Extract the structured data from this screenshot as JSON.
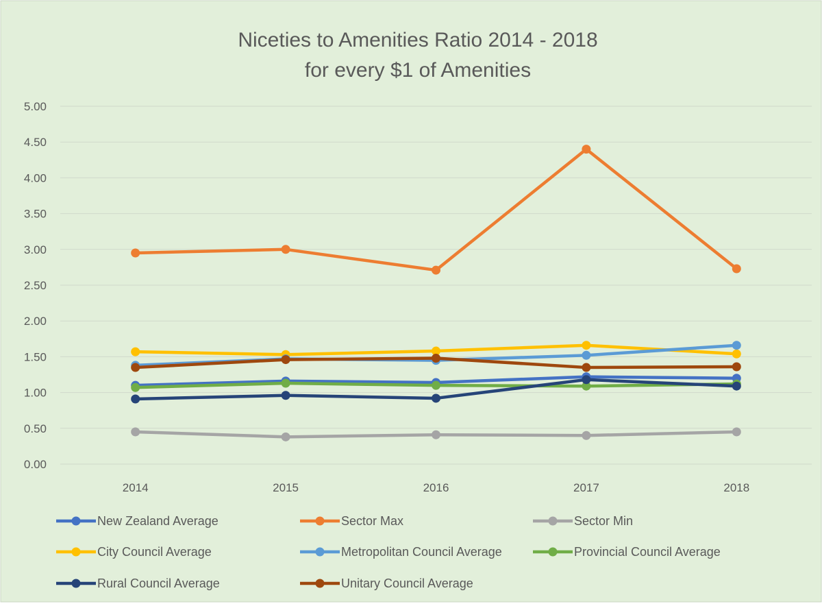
{
  "chart_data": {
    "type": "line",
    "title": [
      "Niceties to Amenities Ratio 2014 - 2018",
      "for every $1 of Amenities"
    ],
    "xlabel": "",
    "ylabel": "",
    "categories": [
      "2014",
      "2015",
      "2016",
      "2017",
      "2018"
    ],
    "ylim": [
      0,
      5
    ],
    "yticks": [
      "0.00",
      "0.50",
      "1.00",
      "1.50",
      "2.00",
      "2.50",
      "3.00",
      "3.50",
      "4.00",
      "4.50",
      "5.00"
    ],
    "grid": true,
    "legend_position": "bottom",
    "series": [
      {
        "name": "New Zealand Average",
        "color": "#4472C4",
        "values": [
          1.1,
          1.16,
          1.14,
          1.22,
          1.2
        ]
      },
      {
        "name": "Sector Max",
        "color": "#ED7D31",
        "values": [
          2.95,
          3.0,
          2.71,
          4.4,
          2.73
        ]
      },
      {
        "name": "Sector Min",
        "color": "#A5A5A5",
        "values": [
          0.45,
          0.38,
          0.41,
          0.4,
          0.45
        ]
      },
      {
        "name": "City Council Average",
        "color": "#FFC000",
        "values": [
          1.57,
          1.53,
          1.58,
          1.66,
          1.54
        ]
      },
      {
        "name": "Metropolitan Council Average",
        "color": "#5B9BD5",
        "values": [
          1.38,
          1.47,
          1.45,
          1.52,
          1.66
        ]
      },
      {
        "name": "Provincial Council Average",
        "color": "#70AD47",
        "values": [
          1.07,
          1.13,
          1.1,
          1.09,
          1.12
        ]
      },
      {
        "name": "Rural Council Average",
        "color": "#264478",
        "values": [
          0.91,
          0.96,
          0.92,
          1.18,
          1.09
        ]
      },
      {
        "name": "Unitary Council Average",
        "color": "#9E480E",
        "values": [
          1.35,
          1.46,
          1.48,
          1.35,
          1.36
        ]
      }
    ]
  }
}
